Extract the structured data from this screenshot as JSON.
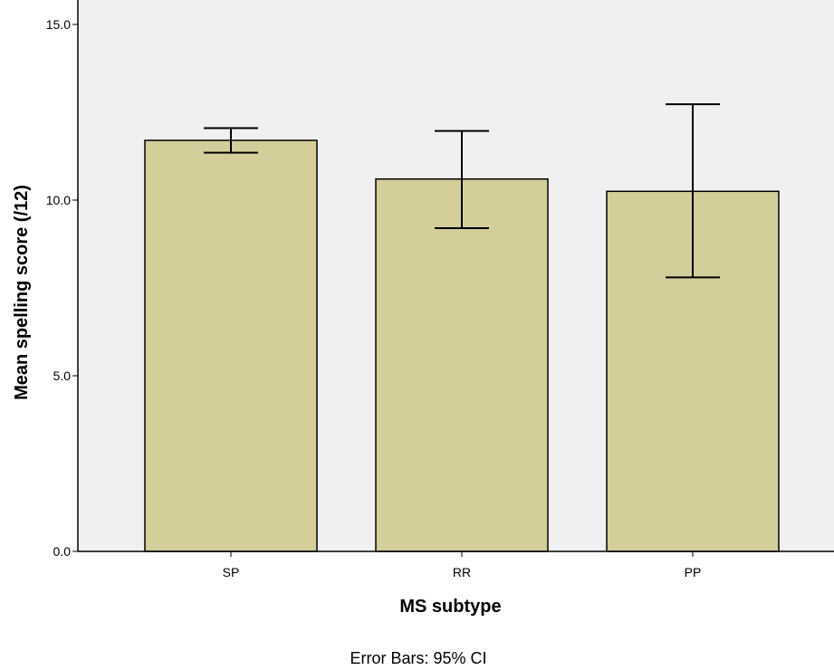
{
  "chart_data": {
    "type": "bar",
    "categories": [
      "SP",
      "RR",
      "PP"
    ],
    "values": [
      11.7,
      10.6,
      10.25
    ],
    "error_bars": {
      "type": "95% CI",
      "lower": [
        11.35,
        9.2,
        7.8
      ],
      "upper": [
        12.05,
        11.97,
        12.73
      ]
    },
    "xlabel": "MS subtype",
    "ylabel": "Mean spelling score (/12)",
    "ylim": [
      0,
      15
    ],
    "yticks": [
      0,
      5,
      10,
      15
    ],
    "ytick_labels": [
      "0.0",
      "5.0",
      "10.0",
      "15.0"
    ],
    "caption": "Error Bars: 95% CI",
    "grid": false,
    "colors": {
      "bar_fill": "#d3ce9a",
      "bar_stroke": "#000000",
      "plot_background": "#f0f0f0",
      "error_bar": "#000000"
    }
  }
}
